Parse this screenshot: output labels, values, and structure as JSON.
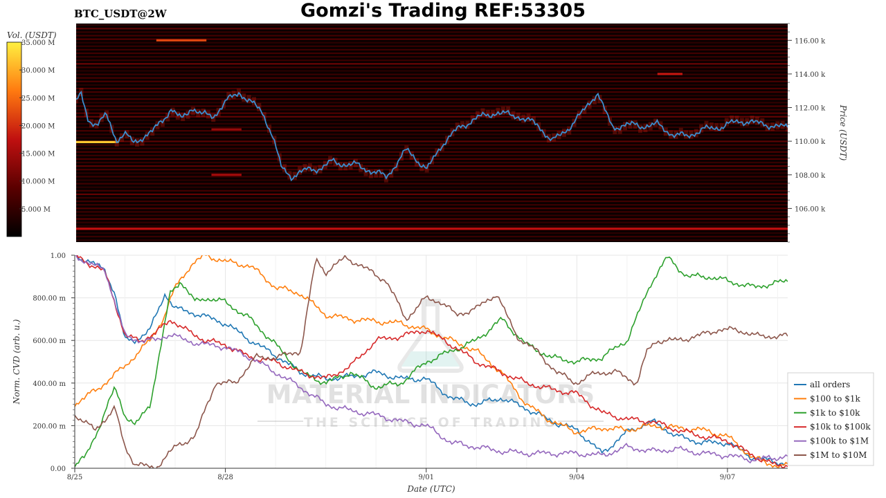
{
  "header": {
    "title": "Gomzi's Trading REF:53305",
    "symbol": "BTC_USDT@2W"
  },
  "watermark": {
    "line1": "MATERIAL INDICATORS",
    "line2": "THE SCIENCE OF TRADING"
  },
  "colors": {
    "heatmap_bg": "#0a0000",
    "price_line": "#3a8fd0",
    "grid": "#e6e6e6"
  },
  "chart_data": [
    {
      "type": "heatmap",
      "colorbar": {
        "label": "Vol. (USDT)",
        "ticks": [
          "5.000 M",
          "10.000 M",
          "15.000 M",
          "20.000 M",
          "25.000 M",
          "30.000 M",
          "35.000 M"
        ],
        "tick_values": [
          5,
          10,
          15,
          20,
          25,
          30,
          35
        ],
        "range": [
          0,
          35
        ]
      },
      "ylabel": "Price (USDT)",
      "ylim": [
        104000,
        117000
      ],
      "y_ticks": [
        "106.00 k",
        "108.00 k",
        "110.00 k",
        "112.00 k",
        "114.00 k",
        "116.00 k"
      ],
      "y_tick_values": [
        106000,
        108000,
        110000,
        112000,
        114000,
        116000
      ],
      "xlim": [
        0,
        14.2
      ],
      "price_series": {
        "name": "BTC price",
        "x": [
          0,
          0.1,
          0.25,
          0.45,
          0.6,
          0.8,
          1.0,
          1.15,
          1.3,
          1.5,
          1.7,
          1.9,
          2.1,
          2.3,
          2.5,
          2.75,
          3.0,
          3.25,
          3.45,
          3.7,
          3.9,
          4.1,
          4.3,
          4.6,
          4.9,
          5.1,
          5.4,
          5.6,
          5.9,
          6.2,
          6.6,
          7.0,
          7.3,
          7.6,
          8.0,
          8.4,
          8.8,
          9.2,
          9.5,
          9.8,
          10.1,
          10.4,
          10.7,
          11.0,
          11.3,
          11.6,
          11.9,
          12.2,
          12.5,
          12.8,
          13.1,
          13.4,
          13.7,
          14.0,
          14.2
        ],
        "y": [
          112300,
          112800,
          111200,
          111000,
          111600,
          110100,
          110400,
          109900,
          110200,
          110500,
          111200,
          111900,
          111300,
          112000,
          111600,
          111500,
          112400,
          112900,
          112400,
          111800,
          110500,
          108400,
          107900,
          108300,
          108400,
          108800,
          108600,
          108600,
          108200,
          107900,
          109500,
          108300,
          109800,
          110700,
          111400,
          111700,
          111500,
          111000,
          110000,
          110700,
          111700,
          112900,
          110800,
          111000,
          110900,
          111000,
          110400,
          110300,
          110700,
          110800,
          111100,
          111200,
          111000,
          110900,
          110800
        ]
      },
      "bright_levels": [
        {
          "price": 116000,
          "x_start": 1.6,
          "x_end": 2.6,
          "intensity": 22
        },
        {
          "price": 114000,
          "x_start": 11.6,
          "x_end": 12.1,
          "intensity": 18
        },
        {
          "price": 109950,
          "x_start": 0.0,
          "x_end": 0.85,
          "intensity": 32
        },
        {
          "price": 104800,
          "x_start": 0.0,
          "x_end": 14.2,
          "intensity": 17
        },
        {
          "price": 108000,
          "x_start": 2.7,
          "x_end": 3.3,
          "intensity": 15
        },
        {
          "price": 110700,
          "x_start": 2.7,
          "x_end": 3.3,
          "intensity": 14
        }
      ]
    },
    {
      "type": "line",
      "xlabel": "Date (UTC)",
      "ylabel": "Norm. CVD (arb. u.)",
      "ylim": [
        0,
        1
      ],
      "xlim": [
        0,
        14.2
      ],
      "y_ticks": [
        "0.00",
        "200.00 m",
        "400.00 m",
        "600.00 m",
        "800.00 m",
        "1.00"
      ],
      "y_tick_values": [
        0,
        0.2,
        0.4,
        0.6,
        0.8,
        1.0
      ],
      "x_ticks": [
        "8/25",
        "8/28",
        "9/01",
        "9/04",
        "9/07"
      ],
      "x_tick_values": [
        0,
        3,
        7,
        10,
        13
      ],
      "legend_position": "right",
      "series": [
        {
          "name": "all orders",
          "color": "#1f77b4",
          "x": [
            0,
            0.3,
            0.6,
            0.8,
            1.0,
            1.2,
            1.5,
            1.8,
            2.0,
            2.5,
            3.0,
            3.5,
            4.0,
            4.5,
            5.0,
            5.5,
            6.0,
            6.5,
            7.0,
            7.5,
            8.0,
            8.5,
            9.0,
            9.5,
            10.0,
            10.5,
            11.0,
            11.5,
            12.0,
            12.5,
            13.0,
            13.5,
            14.0,
            14.2
          ],
          "y": [
            1.0,
            0.97,
            0.93,
            0.82,
            0.6,
            0.6,
            0.65,
            0.82,
            0.75,
            0.72,
            0.68,
            0.6,
            0.53,
            0.45,
            0.42,
            0.43,
            0.45,
            0.42,
            0.42,
            0.33,
            0.3,
            0.33,
            0.28,
            0.22,
            0.18,
            0.07,
            0.17,
            0.22,
            0.15,
            0.12,
            0.12,
            0.05,
            0.03,
            0.02
          ]
        },
        {
          "name": "$100 to $1k",
          "color": "#ff7f0e",
          "x": [
            0,
            0.5,
            1.0,
            1.5,
            1.8,
            2.0,
            2.3,
            2.6,
            3.0,
            3.5,
            4.0,
            4.5,
            5.0,
            5.5,
            6.0,
            6.5,
            7.0,
            7.5,
            8.0,
            8.5,
            9.0,
            9.5,
            10.0,
            10.5,
            11.0,
            11.5,
            12.0,
            12.5,
            13.0,
            13.5,
            14.0,
            14.2
          ],
          "y": [
            0.3,
            0.38,
            0.48,
            0.6,
            0.72,
            0.85,
            0.95,
            1.0,
            0.97,
            0.95,
            0.85,
            0.82,
            0.72,
            0.7,
            0.69,
            0.68,
            0.65,
            0.6,
            0.55,
            0.45,
            0.3,
            0.22,
            0.17,
            0.19,
            0.18,
            0.2,
            0.19,
            0.18,
            0.15,
            0.05,
            0.01,
            0.01
          ]
        },
        {
          "name": "$1k to $10k",
          "color": "#2ca02c",
          "x": [
            0,
            0.2,
            0.5,
            0.8,
            1.0,
            1.2,
            1.5,
            1.7,
            1.9,
            2.1,
            2.4,
            2.6,
            3.0,
            3.5,
            4.0,
            4.5,
            5.0,
            5.5,
            6.0,
            6.5,
            7.0,
            7.5,
            8.0,
            8.5,
            9.0,
            9.5,
            10.0,
            10.5,
            11.0,
            11.5,
            11.8,
            12.2,
            12.6,
            13.0,
            13.5,
            14.0,
            14.2
          ],
          "y": [
            0.01,
            0.05,
            0.2,
            0.38,
            0.25,
            0.2,
            0.3,
            0.55,
            0.82,
            0.88,
            0.78,
            0.8,
            0.78,
            0.7,
            0.58,
            0.45,
            0.4,
            0.45,
            0.38,
            0.4,
            0.5,
            0.55,
            0.6,
            0.7,
            0.58,
            0.52,
            0.5,
            0.52,
            0.6,
            0.88,
            0.99,
            0.9,
            0.9,
            0.88,
            0.85,
            0.87,
            0.88
          ]
        },
        {
          "name": "$10k to $100k",
          "color": "#d62728",
          "x": [
            0,
            0.3,
            0.6,
            0.8,
            1.0,
            1.3,
            1.6,
            1.9,
            2.2,
            2.6,
            3.0,
            3.5,
            4.0,
            4.5,
            5.0,
            5.5,
            6.0,
            6.5,
            7.0,
            7.5,
            8.0,
            8.5,
            9.0,
            9.5,
            10.0,
            10.5,
            11.0,
            11.5,
            12.0,
            12.5,
            13.0,
            13.5,
            14.0,
            14.2
          ],
          "y": [
            1.0,
            0.96,
            0.92,
            0.78,
            0.62,
            0.6,
            0.63,
            0.7,
            0.65,
            0.6,
            0.58,
            0.52,
            0.5,
            0.45,
            0.42,
            0.48,
            0.6,
            0.62,
            0.65,
            0.58,
            0.5,
            0.45,
            0.4,
            0.37,
            0.35,
            0.26,
            0.23,
            0.22,
            0.18,
            0.15,
            0.13,
            0.06,
            0.01,
            0.02
          ]
        },
        {
          "name": "$100k to $1M",
          "color": "#9467bd",
          "x": [
            0,
            0.3,
            0.6,
            0.8,
            1.0,
            1.3,
            1.6,
            1.9,
            2.2,
            2.6,
            3.0,
            3.5,
            4.0,
            4.5,
            5.0,
            5.5,
            6.0,
            6.5,
            7.0,
            7.5,
            8.0,
            8.5,
            9.0,
            9.5,
            10.0,
            10.5,
            11.0,
            11.5,
            12.0,
            12.5,
            13.0,
            13.5,
            14.0,
            14.2
          ],
          "y": [
            1.0,
            0.96,
            0.93,
            0.78,
            0.62,
            0.6,
            0.6,
            0.63,
            0.6,
            0.58,
            0.57,
            0.52,
            0.45,
            0.38,
            0.3,
            0.27,
            0.25,
            0.22,
            0.2,
            0.12,
            0.1,
            0.08,
            0.07,
            0.07,
            0.07,
            0.06,
            0.1,
            0.08,
            0.09,
            0.07,
            0.06,
            0.04,
            0.05,
            0.06
          ]
        },
        {
          "name": "$1M to $10M",
          "color": "#8c564b",
          "x": [
            0,
            0.4,
            0.8,
            1.0,
            1.2,
            1.6,
            2.0,
            2.4,
            2.8,
            3.2,
            3.6,
            4.0,
            4.5,
            4.8,
            5.0,
            5.4,
            5.7,
            6.2,
            6.6,
            7.0,
            7.3,
            7.6,
            8.0,
            8.4,
            8.8,
            9.2,
            9.6,
            10.0,
            10.4,
            10.8,
            11.2,
            11.4,
            11.6,
            12.0,
            12.4,
            12.8,
            13.2,
            13.6,
            14.0,
            14.2
          ],
          "y": [
            0.25,
            0.18,
            0.28,
            0.1,
            0.02,
            0.0,
            0.1,
            0.15,
            0.4,
            0.4,
            0.52,
            0.52,
            0.55,
            0.98,
            0.92,
            0.99,
            0.95,
            0.88,
            0.7,
            0.8,
            0.78,
            0.72,
            0.75,
            0.82,
            0.62,
            0.55,
            0.45,
            0.4,
            0.45,
            0.45,
            0.4,
            0.55,
            0.6,
            0.6,
            0.62,
            0.65,
            0.65,
            0.62,
            0.62,
            0.62
          ]
        }
      ]
    }
  ]
}
